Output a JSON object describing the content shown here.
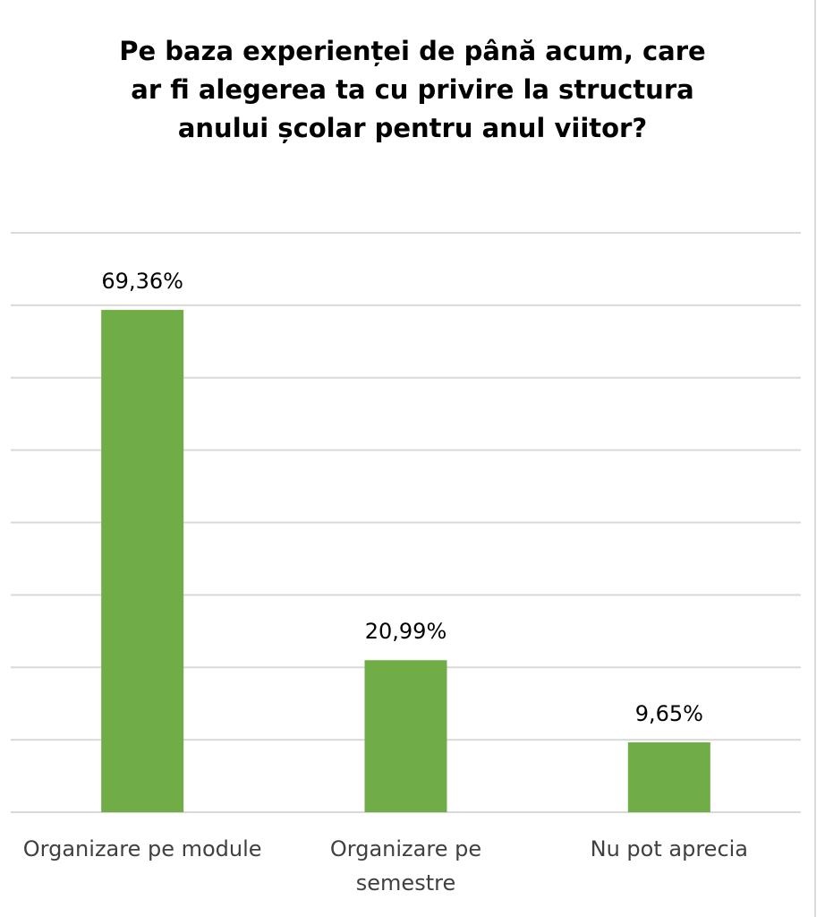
{
  "chart_data": {
    "type": "bar",
    "title": "Pe baza experienței de până acum, care\nar fi alegerea ta cu privire la structura\nanului școlar pentru anul viitor?",
    "categories": [
      [
        "Organizare pe module"
      ],
      [
        "Organizare pe",
        "semestre"
      ],
      [
        "Nu pot aprecia"
      ]
    ],
    "values": [
      69.36,
      20.99,
      9.65
    ],
    "data_labels": [
      "69,36%",
      "20,99%",
      "9,65%"
    ],
    "unit": "%",
    "ylim": [
      0,
      80
    ],
    "ytick_step": 10,
    "y_tick_labels_shown": false,
    "grid": true,
    "legend": "none",
    "bar_color": "#70AD47",
    "grid_color": "#D9D9D9"
  }
}
